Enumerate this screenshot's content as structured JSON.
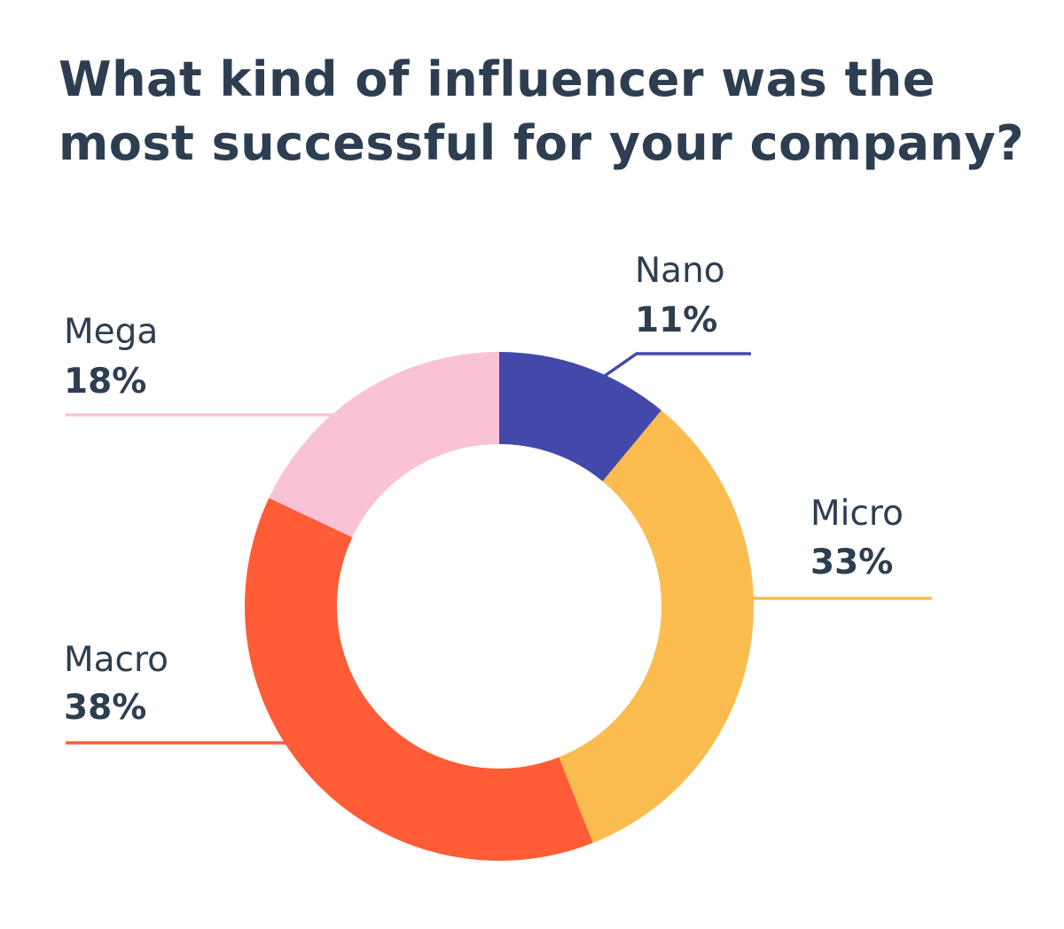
{
  "chart_data": {
    "type": "pie",
    "variant": "donut",
    "title_lines": [
      "What kind of influencer was the",
      "most successful for your company?"
    ],
    "slices": [
      {
        "name": "Nano",
        "label": "11%",
        "value": 11,
        "color": "#4349a8"
      },
      {
        "name": "Micro",
        "label": "33%",
        "value": 33,
        "color": "#fbbc4f"
      },
      {
        "name": "Macro",
        "label": "38%",
        "value": 38,
        "color": "#ff5c37"
      },
      {
        "name": "Mega",
        "label": "18%",
        "value": 18,
        "color": "#f9c2d7"
      }
    ]
  }
}
